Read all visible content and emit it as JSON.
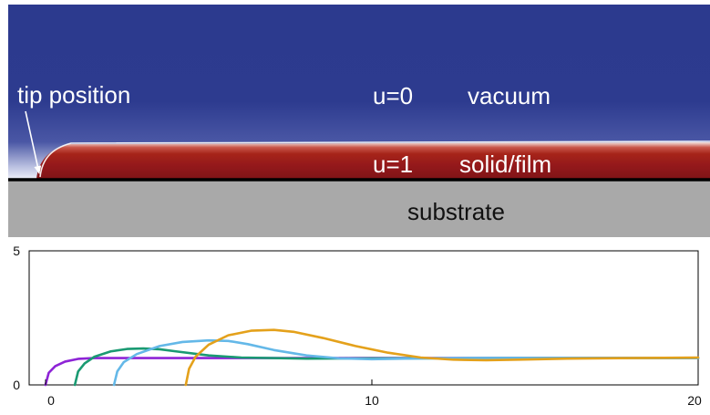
{
  "diagram": {
    "labels": {
      "tip": "tip position",
      "u0": "u=0",
      "vacuum": "vacuum",
      "u1": "u=1",
      "film": "solid/film",
      "substrate": "substrate"
    },
    "colors": {
      "vacuum": "#2e3a8c",
      "film": "#9c1f1a",
      "substrate": "#a9a9a9",
      "interface_line": "#ffffff"
    }
  },
  "chart_data": {
    "type": "line",
    "xlim": [
      -0.5,
      20
    ],
    "ylim": [
      0,
      5
    ],
    "x_ticks": [
      "0",
      "10",
      "20"
    ],
    "y_ticks": [
      "0",
      "5"
    ],
    "grid": false,
    "series": [
      {
        "color": "#8e24d6",
        "x": [
          0,
          0.1,
          0.3,
          0.6,
          1.0,
          1.5,
          2.0,
          3.0,
          5.0,
          8.0,
          12.0,
          16.0,
          20.0
        ],
        "y": [
          0,
          0.45,
          0.7,
          0.87,
          0.97,
          1.0,
          1.0,
          1.0,
          1.0,
          1.0,
          1.0,
          1.0,
          1.0
        ]
      },
      {
        "color": "#1a9a72",
        "x": [
          0.9,
          1.0,
          1.2,
          1.5,
          2.0,
          2.5,
          3.0,
          3.5,
          4.0,
          5.0,
          6.0,
          8.0,
          10.0,
          14.0,
          20.0
        ],
        "y": [
          0,
          0.5,
          0.8,
          1.05,
          1.25,
          1.34,
          1.36,
          1.33,
          1.25,
          1.1,
          1.02,
          0.98,
          0.99,
          1.0,
          1.0
        ]
      },
      {
        "color": "#64b8e8",
        "x": [
          2.1,
          2.2,
          2.4,
          2.8,
          3.5,
          4.2,
          5.0,
          5.6,
          6.2,
          7.0,
          8.0,
          9.0,
          10.0,
          11.0,
          13.0,
          16.0,
          20.0
        ],
        "y": [
          0,
          0.5,
          0.85,
          1.15,
          1.45,
          1.6,
          1.66,
          1.64,
          1.52,
          1.3,
          1.1,
          0.99,
          0.96,
          0.98,
          1.0,
          1.0,
          1.0
        ]
      },
      {
        "color": "#e4a11b",
        "x": [
          4.3,
          4.4,
          4.6,
          5.0,
          5.6,
          6.3,
          7.0,
          7.6,
          8.5,
          9.5,
          10.5,
          11.5,
          12.5,
          13.5,
          14.5,
          16.0,
          18.0,
          20.0
        ],
        "y": [
          0,
          0.6,
          1.05,
          1.5,
          1.85,
          2.02,
          2.05,
          1.98,
          1.75,
          1.45,
          1.2,
          1.02,
          0.94,
          0.92,
          0.94,
          0.98,
          1.0,
          1.02
        ]
      }
    ]
  }
}
